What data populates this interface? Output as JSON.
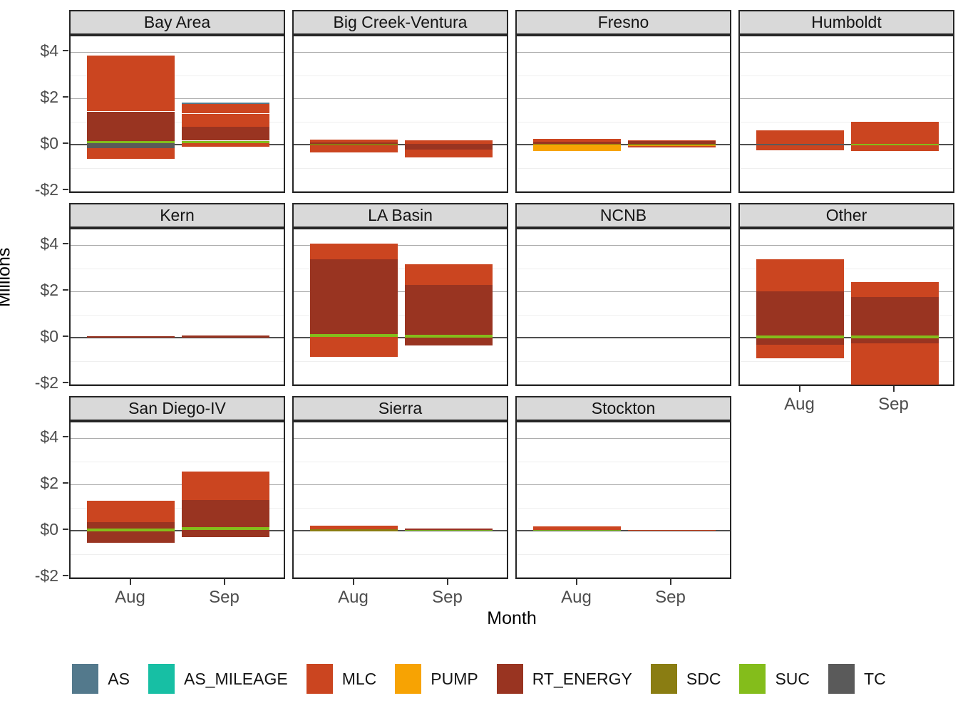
{
  "axes": {
    "y_title": "Millions",
    "x_title": "Month",
    "x_categories": [
      "Aug",
      "Sep"
    ],
    "y_ticks": [
      {
        "label": "$4",
        "value": 4
      },
      {
        "label": "$2",
        "value": 2
      },
      {
        "label": "$0",
        "value": 0
      },
      {
        "label": "-$2",
        "value": -2
      }
    ],
    "y_minor": [
      3,
      1,
      -1
    ],
    "ylim": [
      -2.15,
      4.68
    ],
    "grid": true
  },
  "colors": {
    "AS": "#53798c",
    "AS_MILEAGE": "#17bfa4",
    "MLC": "#cb4520",
    "PUMP": "#f7a303",
    "RT_ENERGY": "#993421",
    "SDC": "#8a7d12",
    "SUC": "#84bd1b",
    "TC": "#5a5a5a",
    "_gap": "#ffffff"
  },
  "legend": [
    "AS",
    "AS_MILEAGE",
    "MLC",
    "PUMP",
    "RT_ENERGY",
    "SDC",
    "SUC",
    "TC"
  ],
  "chart_data": {
    "type": "bar",
    "stacked": true,
    "unit": "USD millions",
    "categories": [
      "Aug",
      "Sep"
    ],
    "legend_position": "bottom",
    "facets": [
      {
        "name": "Bay Area",
        "Aug": [
          [
            "MLC",
            3.85,
            1.43
          ],
          [
            "RT_ENERGY",
            1.43,
            0.16
          ],
          [
            "SUC",
            0.16,
            0.05
          ],
          [
            "TC",
            0.05,
            -0.15
          ],
          [
            "MLC",
            -0.15,
            -0.62
          ]
        ],
        "Sep": [
          [
            "AS",
            1.82,
            1.76
          ],
          [
            "MLC",
            1.76,
            1.35
          ],
          [
            "_gap",
            1.35,
            1.32
          ],
          [
            "MLC",
            1.32,
            0.78
          ],
          [
            "RT_ENERGY",
            0.78,
            0.17
          ],
          [
            "SUC",
            0.17,
            0.05
          ],
          [
            "MLC",
            0.05,
            -0.09
          ]
        ]
      },
      {
        "name": "Big Creek-Ventura",
        "Aug": [
          [
            "MLC",
            0.21,
            0.1
          ],
          [
            "RT_ENERGY",
            0.1,
            0.03
          ],
          [
            "SDC",
            0.03,
            -0.02
          ],
          [
            "MLC",
            -0.02,
            -0.33
          ]
        ],
        "Sep": [
          [
            "MLC",
            0.18,
            0.02
          ],
          [
            "RT_ENERGY",
            0.02,
            -0.22
          ],
          [
            "MLC",
            -0.22,
            -0.55
          ]
        ]
      },
      {
        "name": "Fresno",
        "Aug": [
          [
            "MLC",
            0.26,
            0.12
          ],
          [
            "RT_ENERGY",
            0.12,
            0.04
          ],
          [
            "SDC",
            0.04,
            0.0
          ],
          [
            "PUMP",
            0.0,
            -0.28
          ]
        ],
        "Sep": [
          [
            "MLC",
            0.2,
            0.15
          ],
          [
            "RT_ENERGY",
            0.15,
            0.03
          ],
          [
            "SDC",
            0.03,
            -0.02
          ],
          [
            "PUMP",
            -0.02,
            -0.07
          ],
          [
            "MLC",
            -0.07,
            -0.11
          ]
        ]
      },
      {
        "name": "Humboldt",
        "Aug": [
          [
            "MLC",
            0.62,
            0.02
          ],
          [
            "TC",
            0.02,
            -0.03
          ],
          [
            "MLC",
            -0.03,
            -0.25
          ]
        ],
        "Sep": [
          [
            "MLC",
            1.0,
            0.04
          ],
          [
            "SUC",
            0.04,
            -0.02
          ],
          [
            "MLC",
            -0.02,
            -0.28
          ]
        ]
      },
      {
        "name": "Kern",
        "Aug": [
          [
            "RT_ENERGY",
            0.07,
            0.01
          ]
        ],
        "Sep": [
          [
            "RT_ENERGY",
            0.09,
            0.0
          ]
        ]
      },
      {
        "name": "LA Basin",
        "Aug": [
          [
            "MLC",
            4.05,
            3.39
          ],
          [
            "RT_ENERGY",
            3.39,
            0.15
          ],
          [
            "SUC",
            0.15,
            0.02
          ],
          [
            "MLC",
            0.02,
            -0.82
          ]
        ],
        "Sep": [
          [
            "MLC",
            3.18,
            2.28
          ],
          [
            "RT_ENERGY",
            2.28,
            0.12
          ],
          [
            "SUC",
            0.12,
            0.0
          ],
          [
            "RT_ENERGY",
            0.0,
            -0.35
          ]
        ]
      },
      {
        "name": "NCNB",
        "Aug": [],
        "Sep": []
      },
      {
        "name": "Other",
        "Aug": [
          [
            "MLC",
            3.39,
            1.99
          ],
          [
            "RT_ENERGY",
            1.99,
            0.1
          ],
          [
            "SUC",
            0.1,
            -0.02
          ],
          [
            "RT_ENERGY",
            -0.02,
            -0.3
          ],
          [
            "MLC",
            -0.3,
            -0.9
          ]
        ],
        "Sep": [
          [
            "MLC",
            2.39,
            1.76
          ],
          [
            "RT_ENERGY",
            1.76,
            0.1
          ],
          [
            "SUC",
            0.1,
            -0.02
          ],
          [
            "RT_ENERGY",
            -0.02,
            -0.26
          ],
          [
            "MLC",
            -0.26,
            -2.02
          ]
        ]
      },
      {
        "name": "San Diego-IV",
        "Aug": [
          [
            "MLC",
            1.28,
            0.38
          ],
          [
            "RT_ENERGY",
            0.38,
            0.1
          ],
          [
            "SUC",
            0.1,
            -0.03
          ],
          [
            "RT_ENERGY",
            -0.03,
            -0.53
          ]
        ],
        "Sep": [
          [
            "MLC",
            2.56,
            1.33
          ],
          [
            "RT_ENERGY",
            1.33,
            0.15
          ],
          [
            "SUC",
            0.15,
            0.02
          ],
          [
            "RT_ENERGY",
            0.02,
            -0.28
          ]
        ]
      },
      {
        "name": "Sierra",
        "Aug": [
          [
            "MLC",
            0.22,
            0.07
          ],
          [
            "SDC",
            0.07,
            -0.02
          ]
        ],
        "Sep": [
          [
            "RT_ENERGY",
            0.08,
            0.02
          ],
          [
            "SUC",
            0.02,
            -0.01
          ]
        ]
      },
      {
        "name": "Stockton",
        "Aug": [
          [
            "MLC",
            0.2,
            0.03
          ],
          [
            "SUC",
            0.03,
            -0.01
          ]
        ],
        "Sep": [
          [
            "MLC",
            0.02,
            0.0
          ]
        ]
      }
    ]
  }
}
